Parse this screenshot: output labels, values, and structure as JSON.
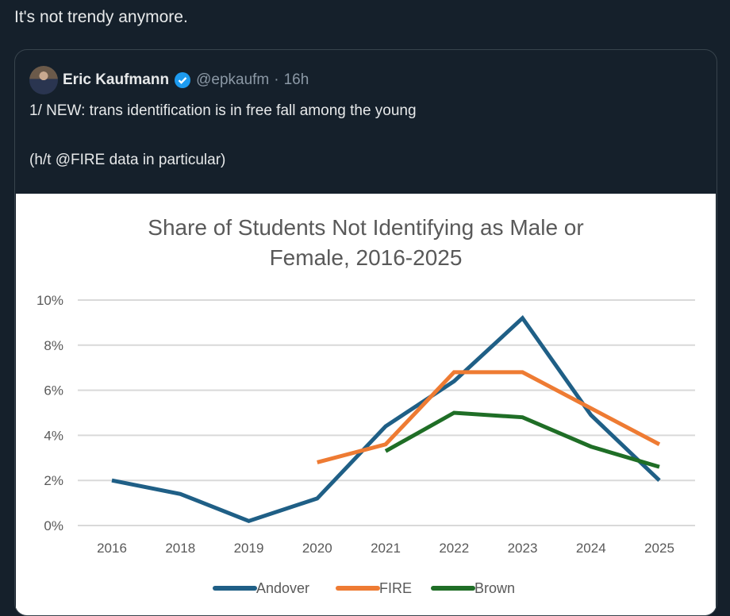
{
  "post": {
    "text": "It's not trendy anymore."
  },
  "quoted": {
    "name": "Eric Kaufmann",
    "handle": "@epkaufm",
    "time": "16h",
    "line1": "1/ NEW: trans identification is in free fall among the young",
    "line2": "(h/t @FIRE data in particular)"
  },
  "chart_data": {
    "type": "line",
    "title": "Share of Students Not Identifying as Male or Female, 2016-2025",
    "title_lines": [
      "Share of Students Not Identifying as Male or",
      "Female, 2016-2025"
    ],
    "categories": [
      "2016",
      "2018",
      "2019",
      "2020",
      "2021",
      "2022",
      "2023",
      "2024",
      "2025"
    ],
    "yticks": [
      "0%",
      "2%",
      "4%",
      "6%",
      "8%",
      "10%"
    ],
    "ylim": [
      0,
      10
    ],
    "grid": true,
    "legend": "bottom",
    "series": [
      {
        "name": "Andover",
        "color": "#1f5f86",
        "values": [
          2.0,
          1.4,
          0.2,
          1.2,
          4.4,
          6.4,
          9.2,
          4.9,
          2.0
        ]
      },
      {
        "name": "FIRE",
        "color": "#ee7b33",
        "values": [
          null,
          null,
          null,
          2.8,
          3.6,
          6.8,
          6.8,
          5.2,
          3.6
        ]
      },
      {
        "name": "Brown",
        "color": "#1f6e26",
        "values": [
          null,
          null,
          null,
          null,
          3.3,
          5.0,
          4.8,
          3.5,
          2.6
        ]
      }
    ]
  }
}
